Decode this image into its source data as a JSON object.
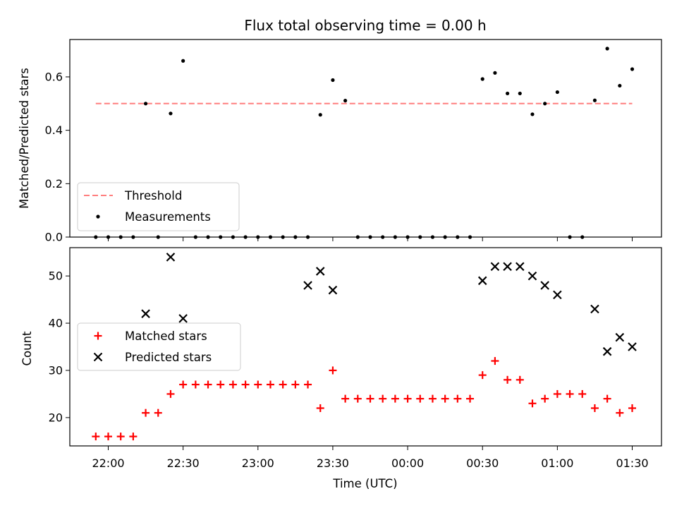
{
  "chart_data": [
    {
      "type": "scatter",
      "title": "Flux total observing time = 0.00 h",
      "xlabel": "",
      "ylabel": "Matched/Predicted stars",
      "ylim": [
        0.0,
        0.74
      ],
      "yticks": [
        0.0,
        0.2,
        0.4,
        0.6
      ],
      "ytick_labels": [
        "0.0",
        "0.2",
        "0.4",
        "0.6"
      ],
      "grid": false,
      "legend_position": "lower-left",
      "threshold": {
        "name": "Threshold",
        "value": 0.5,
        "x_start": "21:55",
        "x_end": "01:30",
        "color": "#ff7f7f",
        "style": "dashed"
      },
      "series": [
        {
          "name": "Measurements",
          "color": "#000000",
          "marker": "dot",
          "x": [
            "21:55",
            "22:00",
            "22:05",
            "22:10",
            "22:15",
            "22:20",
            "22:25",
            "22:30",
            "22:35",
            "22:40",
            "22:45",
            "22:50",
            "22:55",
            "23:00",
            "23:05",
            "23:10",
            "23:15",
            "23:20",
            "23:25",
            "23:30",
            "23:35",
            "23:40",
            "23:45",
            "23:50",
            "23:55",
            "00:00",
            "00:05",
            "00:10",
            "00:15",
            "00:20",
            "00:25",
            "00:30",
            "00:35",
            "00:40",
            "00:45",
            "00:50",
            "00:55",
            "01:00",
            "01:05",
            "01:10",
            "01:15",
            "01:20",
            "01:25",
            "01:30"
          ],
          "y": [
            0.0,
            0.0,
            0.0,
            0.0,
            0.5,
            0.0,
            0.463,
            0.66,
            0.0,
            0.0,
            0.0,
            0.0,
            0.0,
            0.0,
            0.0,
            0.0,
            0.0,
            0.0,
            0.458,
            0.588,
            0.511,
            0.0,
            0.0,
            0.0,
            0.0,
            0.0,
            0.0,
            0.0,
            0.0,
            0.0,
            0.0,
            0.592,
            0.615,
            0.538,
            0.538,
            0.46,
            0.5,
            0.543,
            0.0,
            0.0,
            0.512,
            0.706,
            0.567,
            0.629
          ]
        }
      ]
    },
    {
      "type": "scatter",
      "title": "",
      "xlabel": "Time (UTC)",
      "ylabel": "Count",
      "ylim": [
        14,
        56
      ],
      "yticks": [
        20,
        30,
        40,
        50
      ],
      "ytick_labels": [
        "20",
        "30",
        "40",
        "50"
      ],
      "x_ticks": [
        "22:00",
        "22:30",
        "23:00",
        "23:30",
        "00:00",
        "00:30",
        "01:00",
        "01:30"
      ],
      "grid": false,
      "legend_position": "center-left",
      "series": [
        {
          "name": "Matched stars",
          "color": "#ff0000",
          "marker": "plus",
          "x": [
            "21:55",
            "22:00",
            "22:05",
            "22:10",
            "22:15",
            "22:20",
            "22:25",
            "22:30",
            "22:35",
            "22:40",
            "22:45",
            "22:50",
            "22:55",
            "23:00",
            "23:05",
            "23:10",
            "23:15",
            "23:20",
            "23:25",
            "23:30",
            "23:35",
            "23:40",
            "23:45",
            "23:50",
            "23:55",
            "00:00",
            "00:05",
            "00:10",
            "00:15",
            "00:20",
            "00:25",
            "00:30",
            "00:35",
            "00:40",
            "00:45",
            "00:50",
            "00:55",
            "01:00",
            "01:05",
            "01:10",
            "01:15",
            "01:20",
            "01:25",
            "01:30"
          ],
          "y": [
            16,
            16,
            16,
            16,
            21,
            21,
            25,
            27,
            27,
            27,
            27,
            27,
            27,
            27,
            27,
            27,
            27,
            27,
            22,
            30,
            24,
            24,
            24,
            24,
            24,
            24,
            24,
            24,
            24,
            24,
            24,
            29,
            32,
            28,
            28,
            23,
            24,
            25,
            25,
            25,
            22,
            24,
            21,
            22
          ]
        },
        {
          "name": "Predicted stars",
          "color": "#000000",
          "marker": "x",
          "x": [
            "22:15",
            "22:25",
            "22:30",
            "23:20",
            "23:25",
            "23:30",
            "00:30",
            "00:35",
            "00:40",
            "00:45",
            "00:50",
            "00:55",
            "01:00",
            "01:15",
            "01:20",
            "01:25",
            "01:30"
          ],
          "y": [
            42,
            54,
            41,
            48,
            51,
            47,
            49,
            52,
            52,
            52,
            50,
            48,
            46,
            43,
            34,
            37,
            35
          ]
        }
      ]
    }
  ]
}
